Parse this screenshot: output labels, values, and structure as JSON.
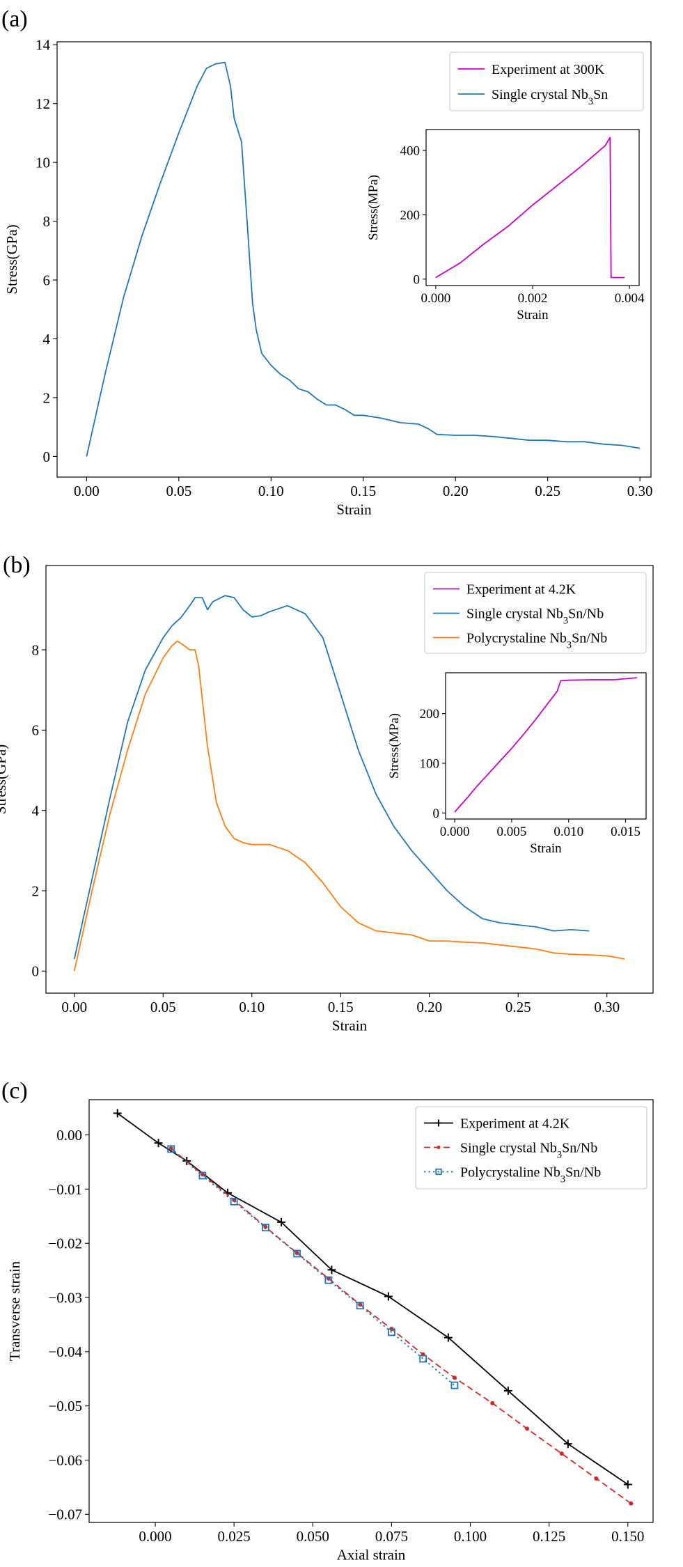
{
  "panel_labels": [
    "(a)",
    "(b)",
    "(c)"
  ],
  "colors": {
    "experiment_magenta": "#c0c",
    "single_blue": "#1f77b4",
    "poly_orange": "#ff7f0e",
    "experiment_black": "#000000",
    "single_red": "#d62728",
    "poly_blue": "#1f77b4"
  },
  "chart_data": [
    {
      "type": "line",
      "panel": "(a)",
      "xlabel": "Strain",
      "ylabel": "Stress(GPa)",
      "xlim": [
        -0.016,
        0.306
      ],
      "ylim": [
        -0.7,
        14.1
      ],
      "xticks": [
        0.0,
        0.05,
        0.1,
        0.15,
        0.2,
        0.25,
        0.3
      ],
      "xtick_labels": [
        "0.00",
        "0.05",
        "0.10",
        "0.15",
        "0.20",
        "0.25",
        "0.30"
      ],
      "yticks": [
        0,
        2,
        4,
        6,
        8,
        10,
        12,
        14
      ],
      "ytick_labels": [
        "0",
        "2",
        "4",
        "6",
        "8",
        "10",
        "12",
        "14"
      ],
      "legend_position": "top-right",
      "legend": [
        {
          "label": "Experiment at 300K",
          "color": "#c0c"
        },
        {
          "label": "Single crystal Nb3Sn",
          "color": "#1f77b4"
        }
      ],
      "series": [
        {
          "name": "Single crystal Nb3Sn",
          "color": "#1f77b4",
          "x": [
            0.0,
            0.01,
            0.02,
            0.03,
            0.04,
            0.05,
            0.06,
            0.065,
            0.07,
            0.075,
            0.078,
            0.08,
            0.084,
            0.087,
            0.09,
            0.092,
            0.095,
            0.1,
            0.105,
            0.11,
            0.115,
            0.12,
            0.125,
            0.13,
            0.135,
            0.14,
            0.145,
            0.15,
            0.16,
            0.17,
            0.18,
            0.185,
            0.19,
            0.2,
            0.21,
            0.22,
            0.23,
            0.24,
            0.25,
            0.26,
            0.27,
            0.28,
            0.29,
            0.3
          ],
          "y": [
            0.0,
            2.8,
            5.4,
            7.5,
            9.3,
            11.0,
            12.6,
            13.2,
            13.35,
            13.4,
            12.6,
            11.5,
            10.7,
            8.0,
            5.2,
            4.3,
            3.5,
            3.1,
            2.8,
            2.6,
            2.3,
            2.2,
            1.95,
            1.75,
            1.75,
            1.6,
            1.4,
            1.4,
            1.3,
            1.15,
            1.1,
            0.95,
            0.75,
            0.72,
            0.72,
            0.68,
            0.62,
            0.55,
            0.55,
            0.5,
            0.5,
            0.42,
            0.38,
            0.28
          ]
        }
      ],
      "inset": {
        "xlabel": "Strain",
        "ylabel": "Stress(MPa)",
        "xlim": [
          -0.0002,
          0.0042
        ],
        "ylim": [
          -20,
          465
        ],
        "xticks": [
          0.0,
          0.002,
          0.004
        ],
        "xtick_labels": [
          "0.000",
          "0.002",
          "0.004"
        ],
        "yticks": [
          0,
          200,
          400
        ],
        "ytick_labels": [
          "0",
          "200",
          "400"
        ],
        "series": [
          {
            "name": "Experiment at 300K",
            "color": "#c0c",
            "x": [
              0.0,
              0.0005,
              0.001,
              0.0015,
              0.002,
              0.0025,
              0.003,
              0.0035,
              0.0036,
              0.00362,
              0.0039
            ],
            "y": [
              5,
              50,
              110,
              165,
              230,
              290,
              350,
              415,
              440,
              5,
              5
            ]
          }
        ]
      }
    },
    {
      "type": "line",
      "panel": "(b)",
      "xlabel": "Strain",
      "ylabel": "Stress(GPa)",
      "xlim": [
        -0.016,
        0.326
      ],
      "ylim": [
        -0.55,
        10.1
      ],
      "xticks": [
        0.0,
        0.05,
        0.1,
        0.15,
        0.2,
        0.25,
        0.3
      ],
      "xtick_labels": [
        "0.00",
        "0.05",
        "0.10",
        "0.15",
        "0.20",
        "0.25",
        "0.30"
      ],
      "yticks": [
        0,
        2,
        4,
        6,
        8
      ],
      "ytick_labels": [
        "0",
        "2",
        "4",
        "6",
        "8"
      ],
      "legend_position": "top-right",
      "legend": [
        {
          "label": "Experiment at 4.2K",
          "color": "#c0c"
        },
        {
          "label": "Single crystal Nb3Sn/Nb",
          "color": "#1f77b4"
        },
        {
          "label": "Polycrystaline Nb3Sn/Nb",
          "color": "#ff7f0e"
        }
      ],
      "series": [
        {
          "name": "Single crystal Nb3Sn/Nb",
          "color": "#1f77b4",
          "x": [
            0.0,
            0.01,
            0.02,
            0.03,
            0.04,
            0.05,
            0.055,
            0.06,
            0.065,
            0.068,
            0.072,
            0.075,
            0.078,
            0.085,
            0.09,
            0.095,
            0.1,
            0.105,
            0.11,
            0.12,
            0.13,
            0.14,
            0.15,
            0.16,
            0.17,
            0.18,
            0.19,
            0.2,
            0.21,
            0.22,
            0.23,
            0.24,
            0.25,
            0.26,
            0.27,
            0.28,
            0.29
          ],
          "y": [
            0.3,
            2.3,
            4.3,
            6.2,
            7.5,
            8.3,
            8.6,
            8.8,
            9.1,
            9.3,
            9.3,
            9.0,
            9.2,
            9.35,
            9.3,
            9.0,
            8.82,
            8.85,
            8.95,
            9.1,
            8.9,
            8.3,
            6.9,
            5.5,
            4.4,
            3.6,
            3.0,
            2.5,
            2.0,
            1.6,
            1.3,
            1.2,
            1.15,
            1.1,
            1.0,
            1.03,
            1.0
          ]
        },
        {
          "name": "Polycrystaline Nb3Sn/Nb",
          "color": "#ff7f0e",
          "x": [
            0.0,
            0.01,
            0.02,
            0.03,
            0.04,
            0.05,
            0.055,
            0.058,
            0.062,
            0.065,
            0.068,
            0.07,
            0.075,
            0.08,
            0.085,
            0.09,
            0.095,
            0.1,
            0.11,
            0.12,
            0.13,
            0.14,
            0.15,
            0.16,
            0.17,
            0.18,
            0.19,
            0.2,
            0.21,
            0.22,
            0.23,
            0.24,
            0.25,
            0.26,
            0.27,
            0.28,
            0.29,
            0.3,
            0.31
          ],
          "y": [
            0.0,
            2.0,
            3.9,
            5.5,
            6.9,
            7.8,
            8.1,
            8.22,
            8.1,
            8.0,
            8.0,
            7.6,
            5.6,
            4.2,
            3.6,
            3.3,
            3.2,
            3.15,
            3.15,
            3.0,
            2.7,
            2.2,
            1.6,
            1.2,
            1.0,
            0.95,
            0.9,
            0.75,
            0.75,
            0.72,
            0.7,
            0.65,
            0.6,
            0.55,
            0.45,
            0.42,
            0.4,
            0.38,
            0.3
          ]
        }
      ],
      "inset": {
        "xlabel": "Strain",
        "ylabel": "Stress(MPa)",
        "xlim": [
          -0.0008,
          0.0168
        ],
        "ylim": [
          -12,
          282
        ],
        "xticks": [
          0.0,
          0.005,
          0.01,
          0.015
        ],
        "xtick_labels": [
          "0.000",
          "0.005",
          "0.010",
          "0.015"
        ],
        "yticks": [
          0,
          100,
          200
        ],
        "ytick_labels": [
          "0",
          "100",
          "200"
        ],
        "series": [
          {
            "name": "Experiment at 4.2K",
            "color": "#c0c",
            "x": [
              0.0,
              0.001,
              0.002,
              0.003,
              0.004,
              0.005,
              0.006,
              0.007,
              0.008,
              0.009,
              0.0093,
              0.01,
              0.012,
              0.014,
              0.016
            ],
            "y": [
              2,
              28,
              55,
              80,
              105,
              130,
              157,
              185,
              215,
              245,
              266,
              267,
              268,
              268,
              272
            ]
          }
        ]
      }
    },
    {
      "type": "line",
      "panel": "(c)",
      "xlabel": "Axial strain",
      "ylabel": "Transverse strain",
      "xlim": [
        -0.021,
        0.158
      ],
      "ylim": [
        -0.0715,
        0.0065
      ],
      "xticks": [
        0.0,
        0.025,
        0.05,
        0.075,
        0.1,
        0.125,
        0.15
      ],
      "xtick_labels": [
        "0.000",
        "0.025",
        "0.050",
        "0.075",
        "0.100",
        "0.125",
        "0.150"
      ],
      "yticks": [
        0.0,
        -0.01,
        -0.02,
        -0.03,
        -0.04,
        -0.05,
        -0.06,
        -0.07
      ],
      "ytick_labels": [
        "0.00",
        "−0.01",
        "−0.02",
        "−0.03",
        "−0.04",
        "−0.05",
        "−0.06",
        "−0.07"
      ],
      "legend_position": "top-right",
      "legend": [
        {
          "label": "Experiment at 4.2K",
          "color": "#000000",
          "marker": "plus",
          "dash": "solid"
        },
        {
          "label": "Single crystal Nb3Sn/Nb",
          "color": "#d62728",
          "marker": "dot",
          "dash": "dashed"
        },
        {
          "label": "Polycrystaline Nb3Sn/Nb",
          "color": "#1f77b4",
          "marker": "square",
          "dash": "dotted"
        }
      ],
      "series": [
        {
          "name": "Experiment at 4.2K",
          "color": "#000000",
          "marker": "plus",
          "dash": "solid",
          "x": [
            -0.012,
            0.001,
            0.01,
            0.023,
            0.04,
            0.056,
            0.074,
            0.093,
            0.112,
            0.131,
            0.15
          ],
          "y": [
            0.004,
            -0.0015,
            -0.0048,
            -0.0107,
            -0.0161,
            -0.0249,
            -0.0298,
            -0.0374,
            -0.0472,
            -0.057,
            -0.0645
          ]
        },
        {
          "name": "Single crystal Nb3Sn/Nb",
          "color": "#d62728",
          "marker": "dot",
          "dash": "dashed",
          "x": [
            0.005,
            0.015,
            0.025,
            0.035,
            0.045,
            0.055,
            0.065,
            0.075,
            0.085,
            0.095,
            0.107,
            0.118,
            0.129,
            0.14,
            0.151
          ],
          "y": [
            -0.0025,
            -0.0073,
            -0.012,
            -0.017,
            -0.0218,
            -0.0265,
            -0.0313,
            -0.0358,
            -0.0405,
            -0.0448,
            -0.0495,
            -0.0542,
            -0.0588,
            -0.0634,
            -0.068
          ]
        },
        {
          "name": "Polycrystaline Nb3Sn/Nb",
          "color": "#1f77b4",
          "marker": "square",
          "dash": "dotted",
          "x": [
            0.005,
            0.015,
            0.025,
            0.035,
            0.045,
            0.055,
            0.065,
            0.075,
            0.085,
            0.095
          ],
          "y": [
            -0.0026,
            -0.0075,
            -0.0123,
            -0.0171,
            -0.0219,
            -0.0268,
            -0.0315,
            -0.0364,
            -0.0413,
            -0.0462
          ]
        }
      ]
    }
  ]
}
